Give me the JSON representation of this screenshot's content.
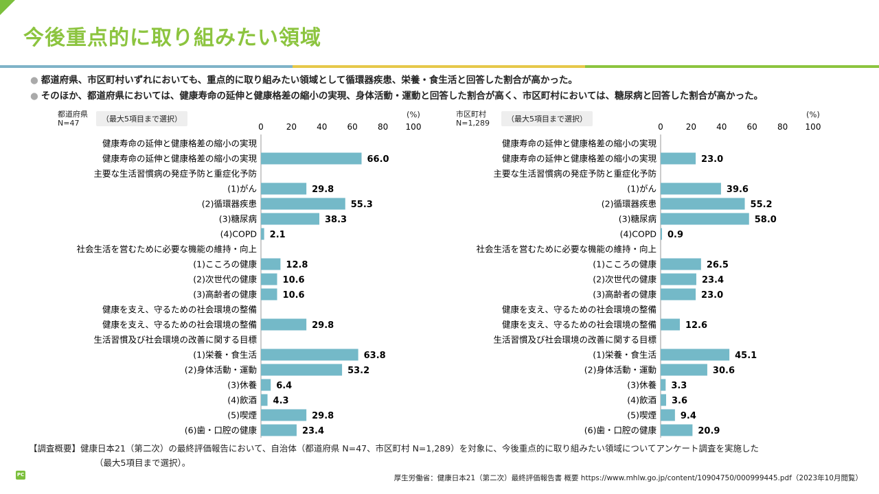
{
  "title": "今後重点的に取り組みたい領域",
  "bullets": [
    "都道府県、市区町村いずれにおいても、重点的に取り組みたい領域として循環器疾患、栄養・食生活と回答した割合が高かった。",
    "そのほか、都道府県においては、健康寿命の延伸と健康格差の縮小の実現、身体活動・運動と回答した割合が高く、市区町村においては、糖尿病と回答した割合が高かった。"
  ],
  "left_panel": {
    "group": "都道府県",
    "n": "N=47",
    "note": "（最大5項目まで選択）",
    "unit": "(%)"
  },
  "right_panel": {
    "group": "市区町村",
    "n": "N=1,289",
    "note": "（最大5項目まで選択）",
    "unit": "(%)"
  },
  "footnote": {
    "line1": "【調査概要】健康日本21（第二次）の最終評価報告において、自治体（都道府県 N=47、市区町村 N=1,289）を対象に、今後重点的に取り組みたい領域についてアンケート調査を実施した",
    "line2": "（最大5項目まで選択）。"
  },
  "logo": "PC",
  "source": "厚生労働省：健康日本21（第二次）最終評価報告書 概要 https://www.mhlw.go.jp/content/10904750/000999445.pdf（2023年10月閲覧）",
  "colors": {
    "bar": "#74b9c8",
    "title": "#8cc43f",
    "accent_blue": "#7fb3c8",
    "accent_yellow": "#e6c84a",
    "accent_green": "#8cc43f"
  },
  "chart_data": [
    {
      "type": "bar",
      "orientation": "horizontal",
      "title": "都道府県 N=47",
      "xlabel": "(%)",
      "xlim": [
        0,
        100
      ],
      "ticks": [
        0,
        20,
        40,
        60,
        80,
        100
      ],
      "categories": [
        "健康寿命の延伸と健康格差の縮小の実現",
        "健康寿命の延伸と健康格差の縮小の実現",
        "主要な生活習慣病の発症予防と重症化予防",
        "(1)がん",
        "(2)循環器疾患",
        "(3)糖尿病",
        "(4)COPD",
        "社会生活を営むために必要な機能の維持・向上",
        "(1)こころの健康",
        "(2)次世代の健康",
        "(3)高齢者の健康",
        "健康を支え、守るための社会環境の整備",
        "健康を支え、守るための社会環境の整備",
        "生活習慣及び社会環境の改善に関する目標",
        "(1)栄養・食生活",
        "(2)身体活動・運動",
        "(3)休養",
        "(4)飲酒",
        "(5)喫煙",
        "(6)歯・口腔の健康"
      ],
      "values": [
        null,
        66.0,
        null,
        29.8,
        55.3,
        38.3,
        2.1,
        null,
        12.8,
        10.6,
        10.6,
        null,
        29.8,
        null,
        63.8,
        53.2,
        6.4,
        4.3,
        29.8,
        23.4
      ],
      "labels": [
        "",
        "66.0",
        "",
        "29.8",
        "55.3",
        "38.3",
        "2.1",
        "",
        "12.8",
        "10.6",
        "10.6",
        "",
        "29.8",
        "",
        "63.8",
        "53.2",
        "6.4",
        "4.3",
        "29.8",
        "23.4"
      ]
    },
    {
      "type": "bar",
      "orientation": "horizontal",
      "title": "市区町村 N=1,289",
      "xlabel": "(%)",
      "xlim": [
        0,
        100
      ],
      "ticks": [
        0,
        20,
        40,
        60,
        80,
        100
      ],
      "categories": [
        "健康寿命の延伸と健康格差の縮小の実現",
        "健康寿命の延伸と健康格差の縮小の実現",
        "主要な生活習慣病の発症予防と重症化予防",
        "(1)がん",
        "(2)循環器疾患",
        "(3)糖尿病",
        "(4)COPD",
        "社会生活を営むために必要な機能の維持・向上",
        "(1)こころの健康",
        "(2)次世代の健康",
        "(3)高齢者の健康",
        "健康を支え、守るための社会環境の整備",
        "健康を支え、守るための社会環境の整備",
        "生活習慣及び社会環境の改善に関する目標",
        "(1)栄養・食生活",
        "(2)身体活動・運動",
        "(3)休養",
        "(4)飲酒",
        "(5)喫煙",
        "(6)歯・口腔の健康"
      ],
      "values": [
        null,
        23.0,
        null,
        39.6,
        55.2,
        58.0,
        0.9,
        null,
        26.5,
        23.4,
        23.0,
        null,
        12.6,
        null,
        45.1,
        30.6,
        3.3,
        3.6,
        9.4,
        20.9
      ],
      "labels": [
        "",
        "23.0",
        "",
        "39.6",
        "55.2",
        "58.0",
        "0.9",
        "",
        "26.5",
        "23.4",
        "23.0",
        "",
        "12.6",
        "",
        "45.1",
        "30.6",
        "3.3",
        "3.6",
        "9.4",
        "20.9"
      ]
    }
  ]
}
